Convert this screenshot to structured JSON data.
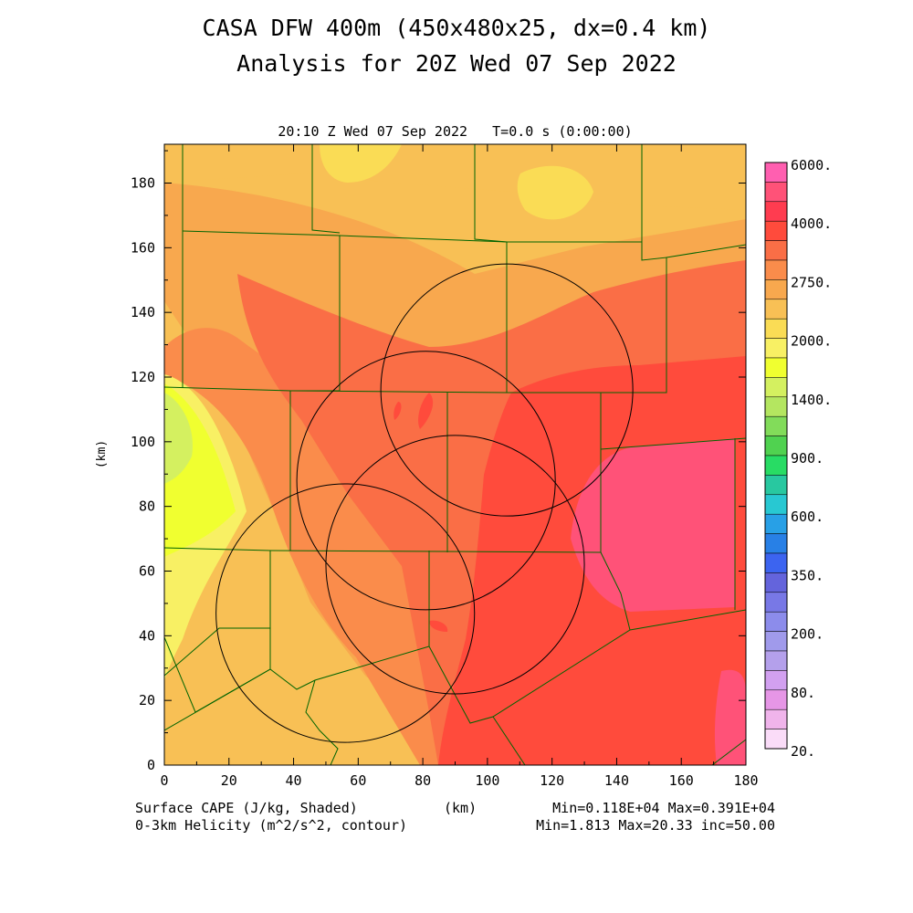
{
  "header": {
    "title_line1": "CASA DFW 400m (450x480x25, dx=0.4 km)",
    "title_line2": "Analysis for 20Z Wed 07 Sep 2022",
    "valid_time": "20:10 Z Wed 07 Sep 2022   T=0.0 s (0:00:00)"
  },
  "axes": {
    "x_label": "(km)",
    "y_label": "(km)",
    "x_ticks": [
      "0",
      "20",
      "40",
      "60",
      "80",
      "100",
      "120",
      "140",
      "160",
      "180"
    ],
    "y_ticks": [
      "0",
      "20",
      "40",
      "60",
      "80",
      "100",
      "120",
      "140",
      "160",
      "180"
    ],
    "x_range": [
      0,
      180
    ],
    "y_range": [
      0,
      192
    ]
  },
  "colorbar": {
    "labels": [
      "6000.",
      "4000.",
      "2750.",
      "2000.",
      "1400.",
      "900.",
      "600.",
      "350.",
      "200.",
      "80.",
      "20."
    ],
    "colors": [
      "#ff5fb0",
      "#ff5278",
      "#ff3c50",
      "#ff4b3c",
      "#fa6e46",
      "#fa8c4b",
      "#f8a84e",
      "#f8c055",
      "#fadc55",
      "#f8f064",
      "#f0ff30",
      "#d4f060",
      "#b4e660",
      "#82dc5a",
      "#50d250",
      "#28dc64",
      "#28c8a0",
      "#28c8d2",
      "#28a0e6",
      "#2880e6",
      "#3c64f0",
      "#6464dc",
      "#7878e6",
      "#8c8ceb",
      "#a09aeb",
      "#b4a0eb",
      "#d2a0f0",
      "#e696e6",
      "#f0b4eb",
      "#fadcf8"
    ],
    "highlight_color": "#ff5fb0"
  },
  "footer": {
    "left_line1": "Surface CAPE (J/kg, Shaded)",
    "left_line2": "0-3km Helicity (m^2/s^2, contour)",
    "center": "(km)",
    "right_line1": "Min=0.118E+04 Max=0.391E+04",
    "right_line2": "Min=1.813 Max=20.33 inc=50.00"
  },
  "map": {
    "radar_circles": [
      {
        "cx": 106,
        "cy": 116,
        "r": 39
      },
      {
        "cx": 81,
        "cy": 88,
        "r": 40
      },
      {
        "cx": 90,
        "cy": 62,
        "r": 40
      },
      {
        "cx": 56,
        "cy": 47,
        "r": 40
      }
    ],
    "county_color": "#006400"
  }
}
